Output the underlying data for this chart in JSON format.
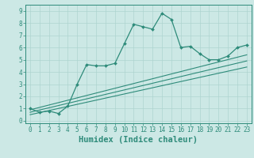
{
  "xlabel": "Humidex (Indice chaleur)",
  "xlim": [
    -0.5,
    23.5
  ],
  "ylim": [
    -0.2,
    9.5
  ],
  "xticks": [
    0,
    1,
    2,
    3,
    4,
    5,
    6,
    7,
    8,
    9,
    10,
    11,
    12,
    13,
    14,
    15,
    16,
    17,
    18,
    19,
    20,
    21,
    22,
    23
  ],
  "yticks": [
    0,
    1,
    2,
    3,
    4,
    5,
    6,
    7,
    8,
    9
  ],
  "main_x": [
    0,
    1,
    2,
    3,
    4,
    5,
    6,
    7,
    8,
    9,
    10,
    11,
    12,
    13,
    14,
    15,
    16,
    17,
    18,
    19,
    20,
    21,
    22,
    23
  ],
  "main_y": [
    1.0,
    0.7,
    0.8,
    0.6,
    1.2,
    3.0,
    4.6,
    4.5,
    4.5,
    4.7,
    6.3,
    7.9,
    7.7,
    7.5,
    8.8,
    8.3,
    6.0,
    6.1,
    5.5,
    5.0,
    5.0,
    5.3,
    6.0,
    6.2
  ],
  "line1_x": [
    0,
    23
  ],
  "line1_y": [
    0.9,
    5.4
  ],
  "line2_x": [
    0,
    23
  ],
  "line2_y": [
    0.7,
    4.9
  ],
  "line3_x": [
    0,
    23
  ],
  "line3_y": [
    0.5,
    4.4
  ],
  "color": "#2e8b7a",
  "bg_color": "#cce8e5",
  "grid_color": "#aed4d0",
  "tick_fontsize": 5.5,
  "xlabel_fontsize": 7.5
}
